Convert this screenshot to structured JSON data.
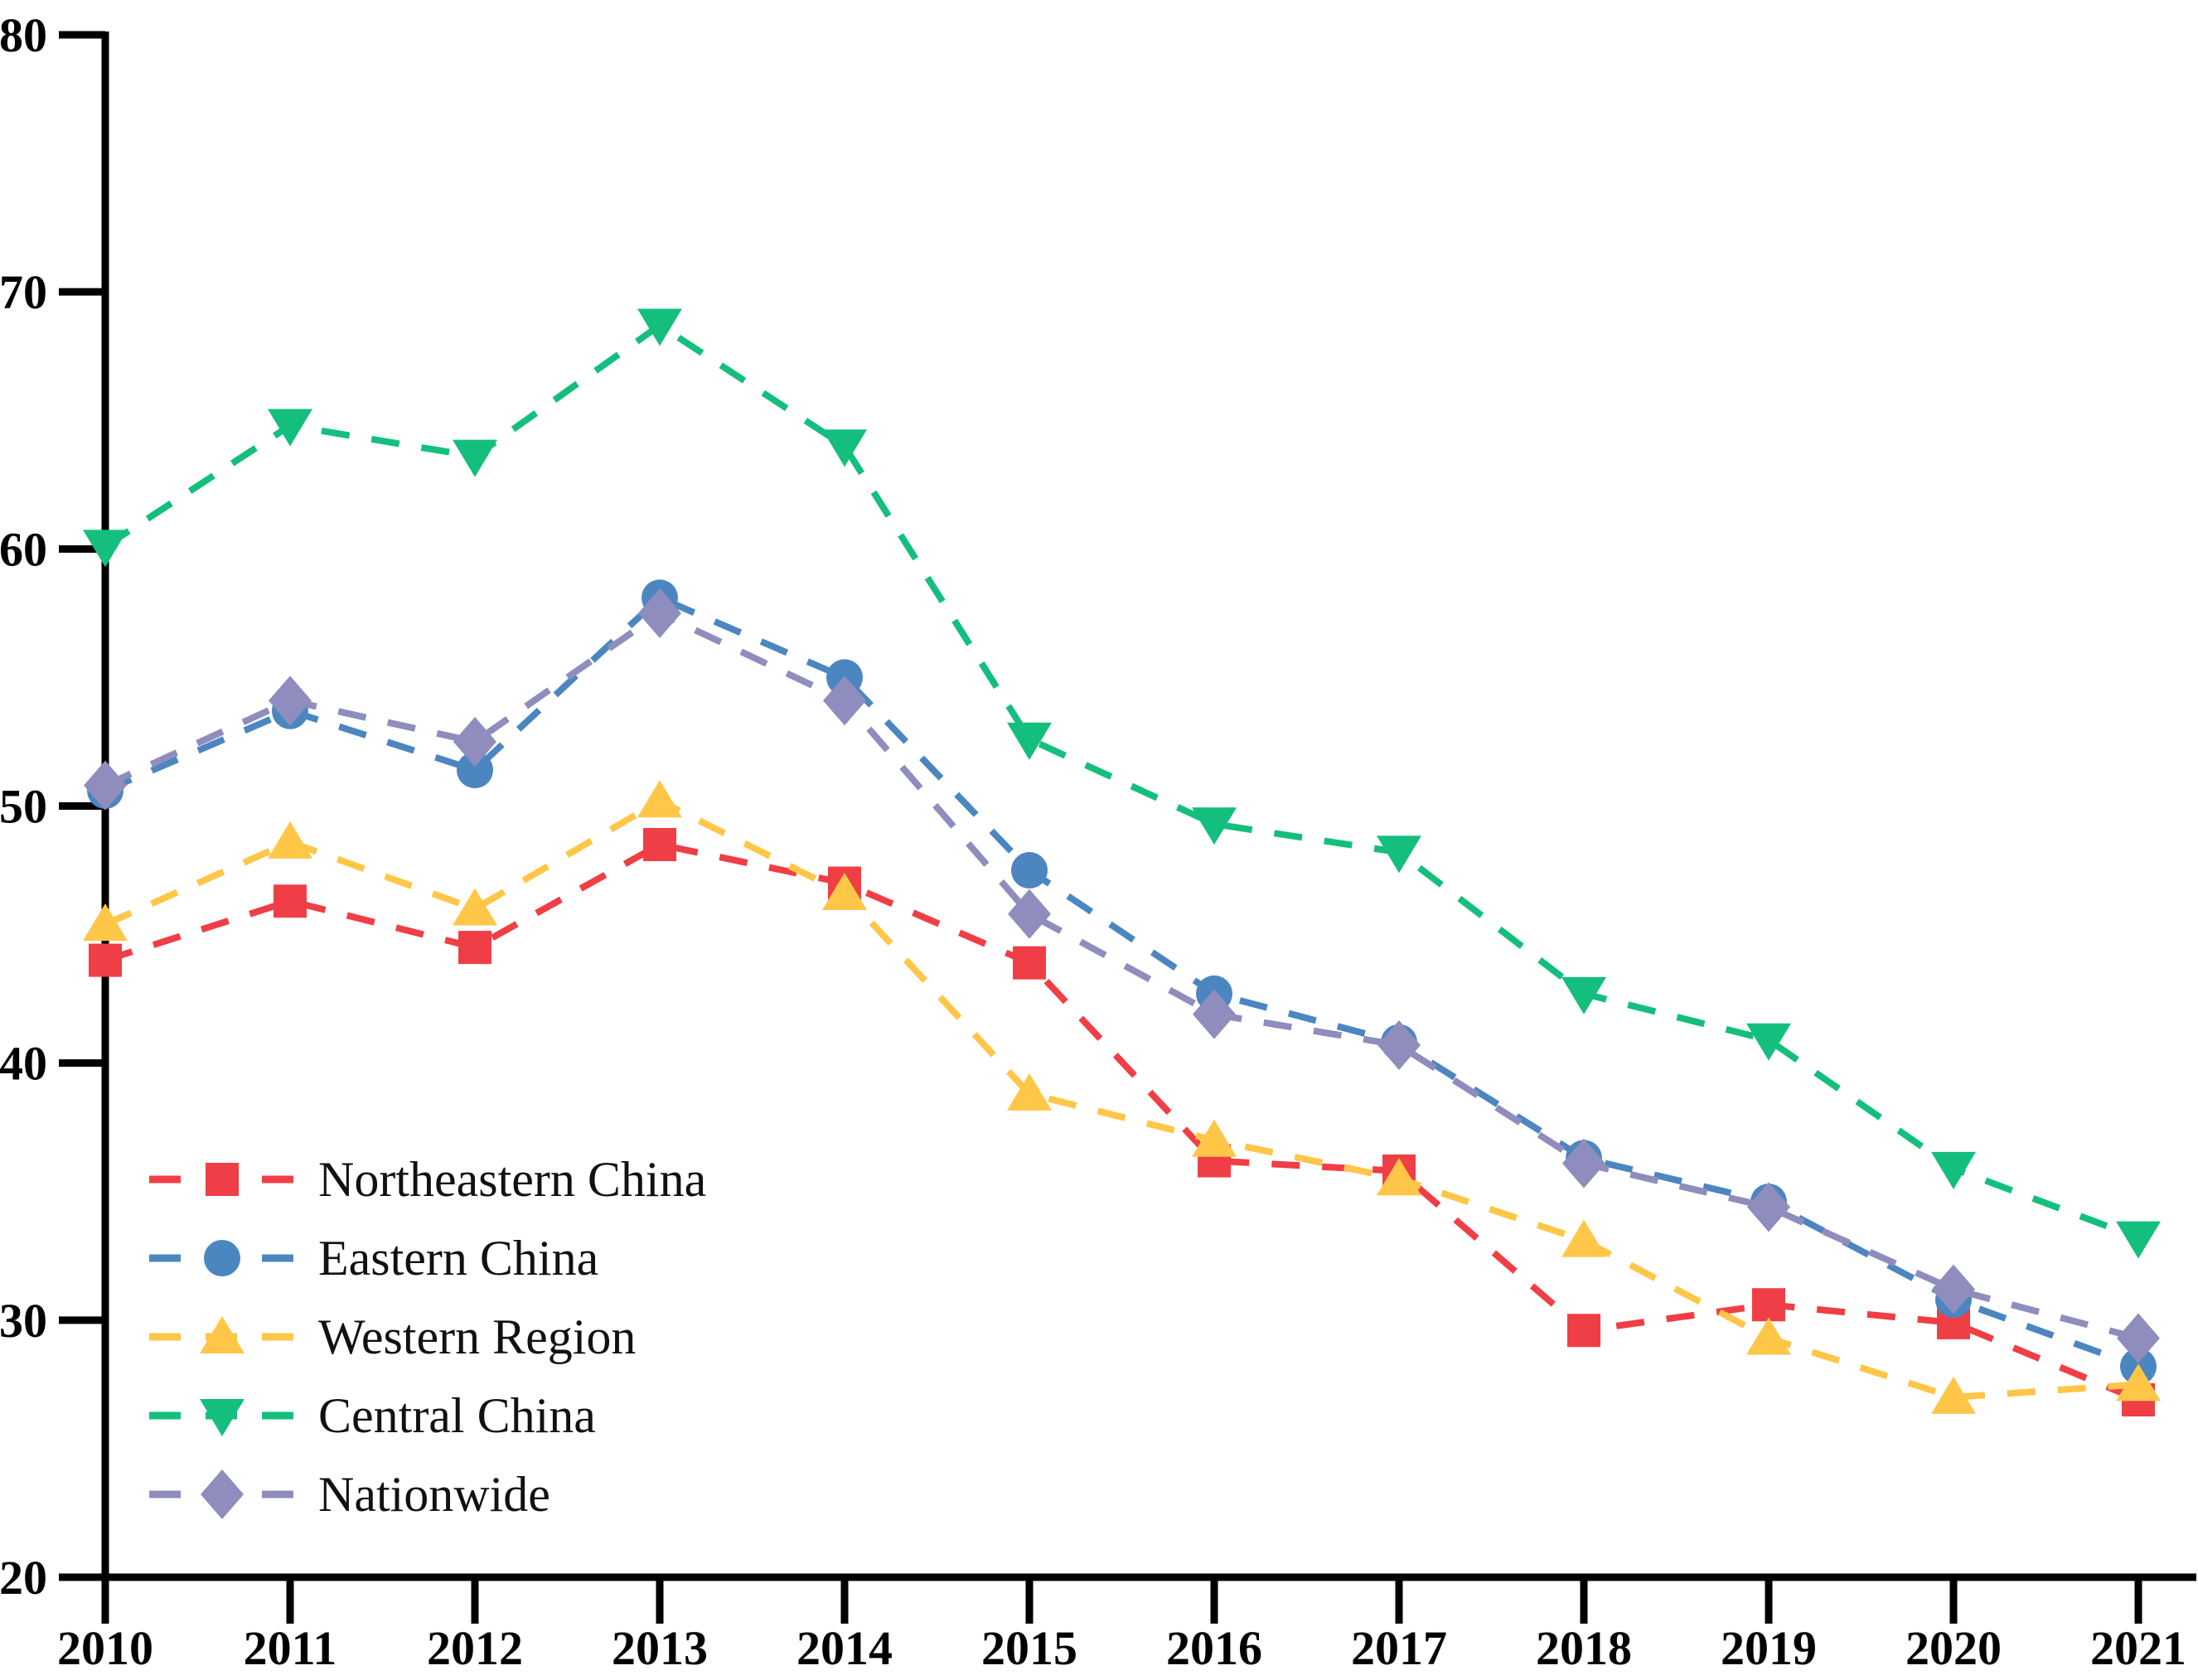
{
  "figure": {
    "background": "#ffffff",
    "axis_color": "#000000"
  },
  "chart_data": {
    "type": "line",
    "line_style": "dashed",
    "grid": false,
    "legend_position": "lower-left",
    "x": [
      "2010",
      "2011",
      "2012",
      "2013",
      "2014",
      "2015",
      "2016",
      "2017",
      "2018",
      "2019",
      "2020",
      "2021"
    ],
    "ylim": [
      20,
      80
    ],
    "yticks": [
      "20",
      "30",
      "40",
      "50",
      "60",
      "70",
      "80"
    ],
    "xlabel": "",
    "ylabel": "",
    "title": "",
    "series": [
      {
        "name": "Northeastern China",
        "marker": "square",
        "color": "#F03E46",
        "values": [
          44.0,
          46.3,
          44.5,
          48.5,
          47.0,
          43.9,
          36.2,
          35.8,
          29.6,
          30.6,
          29.9,
          26.9
        ]
      },
      {
        "name": "Eastern China",
        "marker": "circle",
        "color": "#4C86C0",
        "values": [
          50.6,
          53.7,
          51.4,
          58.1,
          55.0,
          47.5,
          42.7,
          40.8,
          36.3,
          34.6,
          30.8,
          28.2
        ]
      },
      {
        "name": "Western Region",
        "marker": "triangle-up",
        "color": "#FFC648",
        "values": [
          45.4,
          48.6,
          46.0,
          50.2,
          46.6,
          38.8,
          37.0,
          35.5,
          33.1,
          29.3,
          27.0,
          27.5
        ]
      },
      {
        "name": "Central China",
        "marker": "triangle-down",
        "color": "#14BF7D",
        "values": [
          60.1,
          64.8,
          63.6,
          68.7,
          64.0,
          52.6,
          49.3,
          48.2,
          42.7,
          40.9,
          35.9,
          33.2
        ]
      },
      {
        "name": "Nationwide",
        "marker": "diamond",
        "color": "#8F8DBD",
        "values": [
          50.8,
          54.1,
          52.5,
          57.5,
          54.1,
          45.8,
          41.9,
          40.7,
          36.1,
          34.4,
          31.2,
          29.3
        ]
      }
    ]
  }
}
